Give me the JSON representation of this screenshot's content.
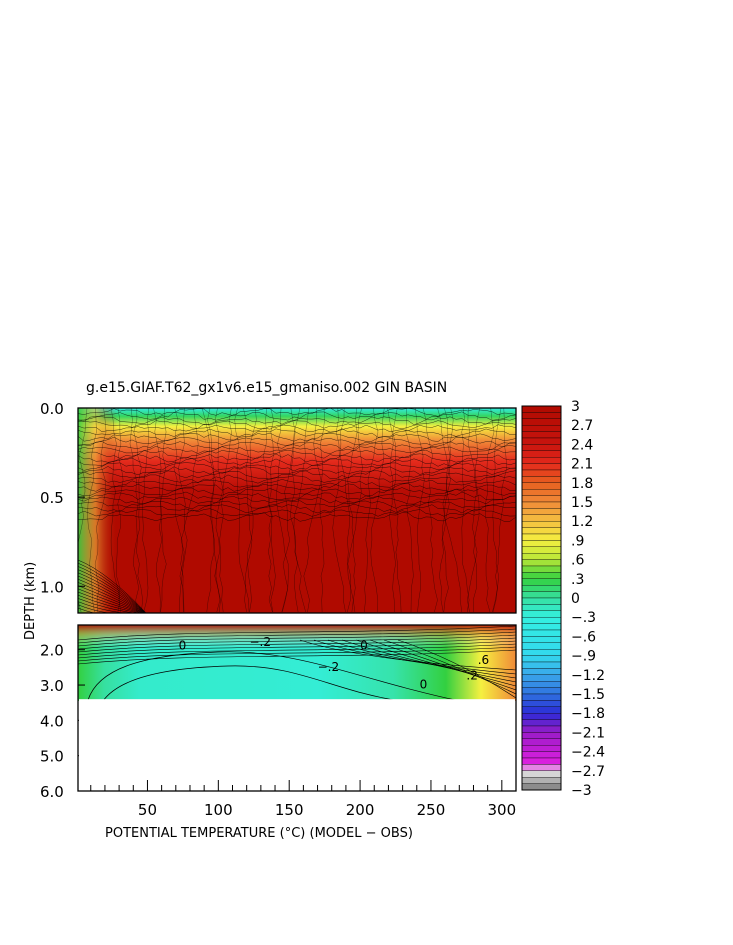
{
  "chart_data": {
    "type": "heatmap",
    "title": "g.e15.GIAF.T62_gx1v6.e15_gmaniso.002 GIN BASIN",
    "xlabel": "POTENTIAL TEMPERATURE (°C) (MODEL − OBS)",
    "ylabel": "DEPTH (km)",
    "xlim": [
      1,
      310
    ],
    "x_ticks": [
      50,
      100,
      150,
      200,
      250,
      300
    ],
    "x_tick_labels": [
      "50",
      "100",
      "150",
      "200",
      "250",
      "300"
    ],
    "y_top_panel": {
      "range_km": [
        0.0,
        1.15
      ],
      "ticks": [
        0.0,
        0.5,
        1.0
      ],
      "tick_labels": [
        "0.0",
        "0.5",
        "1.0"
      ]
    },
    "y_bottom_panel": {
      "range_km": [
        1.3,
        6.0
      ],
      "ticks": [
        2.0,
        3.0,
        4.0,
        5.0,
        6.0
      ],
      "tick_labels": [
        "2.0",
        "3.0",
        "4.0",
        "5.0",
        "6.0"
      ]
    },
    "data_bottom_km": 3.4,
    "colorbar": {
      "min": -3,
      "max": 3,
      "step": 0.1,
      "tick_values": [
        3,
        2.7,
        2.4,
        2.1,
        1.8,
        1.5,
        1.2,
        0.9,
        0.6,
        0.3,
        0,
        -0.3,
        -0.6,
        -0.9,
        -1.2,
        -1.5,
        -1.8,
        -2.1,
        -2.4,
        -2.7,
        -3
      ],
      "tick_labels": [
        "3",
        "2.7",
        "2.4",
        "2.1",
        "1.8",
        "1.5",
        "1.2",
        ".9",
        ".6",
        ".3",
        "0",
        "−.3",
        "−.6",
        "−.9",
        "−1.2",
        "−1.5",
        "−1.8",
        "−2.1",
        "−2.4",
        "−2.7",
        "−3"
      ],
      "color_stops": [
        [
          -3,
          "#7a7a7a"
        ],
        [
          -2.7,
          "#e8e8e8"
        ],
        [
          -2.6,
          "#e020e0"
        ],
        [
          -2.1,
          "#9a1cc8"
        ],
        [
          -1.8,
          "#2b2bd6"
        ],
        [
          -1.5,
          "#2f72e0"
        ],
        [
          -1.2,
          "#3aa7ea"
        ],
        [
          -0.9,
          "#33d8ee"
        ],
        [
          -0.3,
          "#33f0e0"
        ],
        [
          0,
          "#36e0a0"
        ],
        [
          0.3,
          "#33d040"
        ],
        [
          0.6,
          "#b8e638"
        ],
        [
          0.9,
          "#f5f040"
        ],
        [
          1.2,
          "#f4c040"
        ],
        [
          1.5,
          "#f08a38"
        ],
        [
          1.8,
          "#e66020"
        ],
        [
          2.1,
          "#e42a1c"
        ],
        [
          2.4,
          "#c8140e"
        ],
        [
          3,
          "#b00a00"
        ]
      ]
    },
    "contour_labels_bottom": [
      {
        "text": "0",
        "x": 72,
        "depth": 2.0
      },
      {
        "text": "−.2",
        "x": 170,
        "depth": 2.6
      },
      {
        "text": "−.2",
        "x": 122,
        "depth": 1.9
      },
      {
        "text": "0",
        "x": 200,
        "depth": 2.0
      },
      {
        "text": "0",
        "x": 242,
        "depth": 3.1
      },
      {
        "text": ".2",
        "x": 275,
        "depth": 2.85
      },
      {
        "text": ".6",
        "x": 283,
        "depth": 2.4
      }
    ]
  }
}
